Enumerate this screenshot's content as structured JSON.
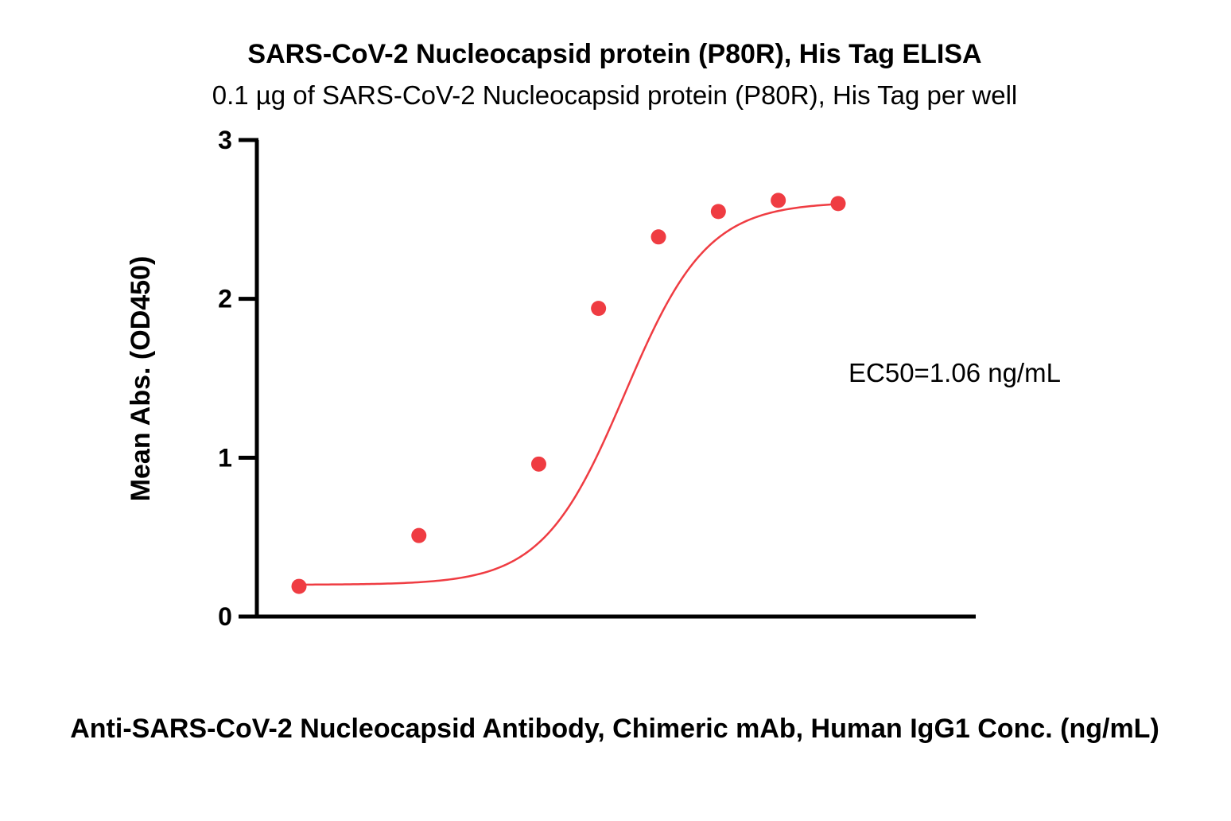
{
  "chart_data": {
    "type": "scatter",
    "title": "SARS-CoV-2 Nucleocapsid protein (P80R), His Tag ELISA",
    "subtitle": "0.1 µg of SARS-CoV-2 Nucleocapsid protein (P80R), His Tag per well",
    "xlabel": "Anti-SARS-CoV-2 Nucleocapsid Antibody, Chimeric mAb, Human IgG1 Conc. (ng/mL)",
    "ylabel": "Mean Abs. (OD450)",
    "ylim": [
      0,
      3
    ],
    "y_ticks": [
      "0",
      "1",
      "2",
      "3"
    ],
    "x_scale": "log",
    "x_tick_labels_shown": false,
    "grid": false,
    "annotation": "EC50=1.06 ng/mL",
    "ec50": 1.06,
    "series": [
      {
        "x": [
          0.0244,
          0.0977,
          0.391,
          0.781,
          1.563,
          3.125,
          6.25,
          12.5
        ],
        "y": [
          0.19,
          0.51,
          0.96,
          1.94,
          2.39,
          2.55,
          2.62,
          2.6
        ],
        "color": "#ef3c42",
        "fit": "4PL",
        "fit_params": {
          "bottom": 0.2,
          "top": 2.61,
          "ec50": 1.06,
          "hill": 2.1
        }
      }
    ]
  }
}
